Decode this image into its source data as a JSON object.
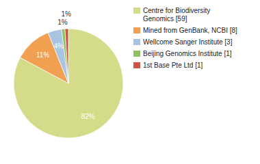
{
  "chart_data": {
    "type": "pie",
    "categories": [
      "Centre for Biodiversity\nGenomics [59]",
      "Mined from GenBank, NCBI [8]",
      "Wellcome Sanger Institute [3]",
      "Beijing Genomics Institute [1]",
      "1st Base Pte Ltd [1]"
    ],
    "values": [
      82,
      11,
      4,
      1,
      1
    ],
    "value_labels": [
      "82%",
      "11%",
      "4%",
      "1%",
      "1%"
    ],
    "colors": [
      "#d4dc8a",
      "#f0a050",
      "#a8c4e0",
      "#90c060",
      "#cc5544"
    ],
    "data_labels": true,
    "legend": "right"
  }
}
